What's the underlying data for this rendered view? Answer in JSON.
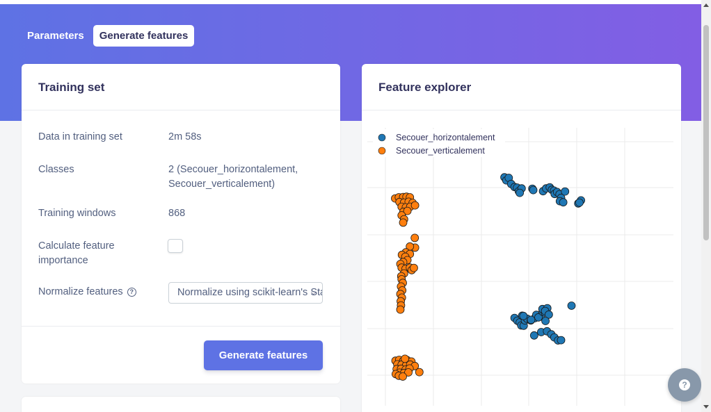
{
  "tabs": [
    {
      "label": "Parameters",
      "active": false
    },
    {
      "label": "Generate features",
      "active": true
    }
  ],
  "training": {
    "title": "Training set",
    "rows": [
      {
        "label": "Data in training set",
        "value": "2m 58s"
      },
      {
        "label": "Classes",
        "value": "2 (Secouer_horizontalement, Secouer_verticalement)"
      },
      {
        "label": "Training windows",
        "value": "868"
      },
      {
        "label": "Calculate feature importance",
        "checked": false
      },
      {
        "label": "Normalize features",
        "icon": "question-circle-icon"
      }
    ],
    "normalize_selected": "Normalize using scikit-learn's StandardScaler",
    "button_label": "Generate features"
  },
  "explorer": {
    "title": "Feature explorer"
  },
  "colors": {
    "accent": "#5e72e4",
    "gradient_end": "#825ee4",
    "series_blue": "#1f77b4",
    "series_orange": "#ff7f0e"
  },
  "chart_data": {
    "type": "scatter",
    "title": "",
    "xlabel": "",
    "ylabel": "",
    "xlim": [
      0,
      100
    ],
    "ylim": [
      0,
      100
    ],
    "grid": true,
    "tick_labels": false,
    "legend_position": "top-left",
    "series": [
      {
        "name": "Secouer_horizontalement",
        "color": "#1f77b4",
        "points": [
          [
            44.8,
            82.2
          ],
          [
            45.4,
            81.1
          ],
          [
            46.2,
            82.0
          ],
          [
            47.0,
            79.8
          ],
          [
            48.1,
            78.7
          ],
          [
            48.9,
            78.5
          ],
          [
            49.5,
            77.2
          ],
          [
            50.4,
            78.2
          ],
          [
            49.8,
            76.6
          ],
          [
            53.9,
            78.1
          ],
          [
            54.2,
            77.6
          ],
          [
            57.4,
            77.2
          ],
          [
            58.4,
            78.2
          ],
          [
            59.6,
            78.6
          ],
          [
            60.3,
            77.7
          ],
          [
            61.0,
            77.4
          ],
          [
            61.2,
            76.2
          ],
          [
            62.0,
            76.9
          ],
          [
            62.8,
            76.1
          ],
          [
            63.3,
            74.8
          ],
          [
            62.9,
            73.6
          ],
          [
            64.0,
            73.2
          ],
          [
            64.6,
            77.1
          ],
          [
            68.9,
            72.8
          ],
          [
            69.8,
            73.9
          ],
          [
            69.3,
            73.1
          ],
          [
            48.1,
            31.6
          ],
          [
            49.0,
            30.6
          ],
          [
            49.8,
            30.0
          ],
          [
            50.3,
            28.9
          ],
          [
            51.1,
            28.8
          ],
          [
            51.5,
            30.7
          ],
          [
            50.6,
            32.4
          ],
          [
            52.2,
            31.3
          ],
          [
            53.4,
            30.7
          ],
          [
            54.7,
            31.5
          ],
          [
            55.2,
            32.7
          ],
          [
            56.6,
            32.1
          ],
          [
            55.9,
            31.8
          ],
          [
            57.3,
            33.8
          ],
          [
            58.0,
            33.6
          ],
          [
            57.2,
            34.8
          ],
          [
            58.8,
            35.1
          ],
          [
            58.1,
            34.1
          ],
          [
            59.3,
            32.8
          ],
          [
            58.2,
            30.5
          ],
          [
            56.8,
            26.5
          ],
          [
            54.5,
            25.3
          ],
          [
            58.7,
            26.8
          ],
          [
            60.1,
            25.7
          ],
          [
            61.1,
            24.6
          ],
          [
            62.3,
            23.5
          ],
          [
            63.3,
            23.6
          ],
          [
            66.7,
            36.0
          ],
          [
            51.0,
            32.3
          ],
          [
            53.5,
            30.9
          ]
        ]
      },
      {
        "name": "Secouer_verticalement",
        "color": "#ff7f0e",
        "points": [
          [
            9.1,
            74.6
          ],
          [
            10.3,
            75.0
          ],
          [
            11.7,
            75.1
          ],
          [
            12.8,
            75.2
          ],
          [
            13.9,
            75.0
          ],
          [
            10.5,
            73.3
          ],
          [
            12.0,
            73.1
          ],
          [
            13.5,
            73.4
          ],
          [
            14.8,
            73.0
          ],
          [
            11.2,
            71.6
          ],
          [
            12.6,
            71.4
          ],
          [
            14.0,
            71.6
          ],
          [
            15.6,
            72.1
          ],
          [
            11.8,
            69.8
          ],
          [
            13.1,
            70.1
          ],
          [
            11.2,
            68.5
          ],
          [
            12.0,
            67.1
          ],
          [
            11.7,
            65.9
          ],
          [
            15.5,
            60.4
          ],
          [
            15.6,
            56.9
          ],
          [
            13.9,
            57.3
          ],
          [
            12.6,
            55.2
          ],
          [
            11.3,
            54.3
          ],
          [
            13.9,
            54.6
          ],
          [
            12.4,
            53.6
          ],
          [
            13.1,
            52.4
          ],
          [
            11.7,
            51.7
          ],
          [
            10.8,
            51.0
          ],
          [
            11.2,
            49.7
          ],
          [
            12.5,
            49.3
          ],
          [
            13.9,
            49.7
          ],
          [
            14.5,
            48.8
          ],
          [
            15.2,
            49.6
          ],
          [
            12.0,
            47.6
          ],
          [
            11.1,
            46.6
          ],
          [
            11.2,
            45.5
          ],
          [
            11.6,
            44.2
          ],
          [
            11.0,
            42.9
          ],
          [
            11.4,
            41.5
          ],
          [
            10.8,
            40.2
          ],
          [
            11.3,
            38.9
          ],
          [
            10.9,
            37.6
          ],
          [
            11.0,
            36.1
          ],
          [
            10.8,
            34.6
          ],
          [
            9.2,
            16.2
          ],
          [
            10.4,
            16.5
          ],
          [
            11.7,
            16.1
          ],
          [
            13.0,
            16.4
          ],
          [
            14.4,
            15.9
          ],
          [
            9.8,
            14.9
          ],
          [
            11.2,
            14.8
          ],
          [
            12.7,
            14.6
          ],
          [
            14.0,
            14.8
          ],
          [
            15.5,
            14.3
          ],
          [
            9.6,
            13.2
          ],
          [
            11.0,
            13.3
          ],
          [
            12.5,
            13.0
          ],
          [
            13.8,
            13.4
          ],
          [
            10.5,
            11.9
          ],
          [
            12.0,
            11.8
          ],
          [
            13.4,
            12.0
          ],
          [
            9.3,
            11.4
          ],
          [
            10.3,
            10.8
          ],
          [
            11.6,
            10.5
          ],
          [
            17.0,
            12.1
          ],
          [
            12.3,
            16.9
          ]
        ]
      }
    ]
  }
}
